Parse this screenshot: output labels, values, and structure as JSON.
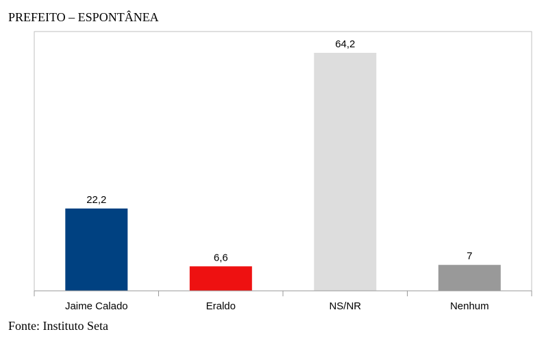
{
  "page": {
    "title": "PREFEITO – ESPONTÂNEA",
    "source": "Fonte: Instituto Seta"
  },
  "chart_data": {
    "type": "bar",
    "title": "PREFEITO – ESPONTÂNEA",
    "xlabel": "",
    "ylabel": "",
    "categories": [
      "Jaime Calado",
      "Eraldo",
      "NS/NR",
      "Nenhum"
    ],
    "values": [
      22.2,
      6.6,
      64.2,
      7
    ],
    "value_labels": [
      "22,2",
      "6,6",
      "64,2",
      "7"
    ],
    "colors": [
      "#004181",
      "#ee1111",
      "#dddddd",
      "#999999"
    ],
    "ylim": [
      0,
      64.2
    ],
    "grid": false,
    "legend": "none",
    "frame_color": "#bfbfbf",
    "axis_color": "#999999"
  }
}
